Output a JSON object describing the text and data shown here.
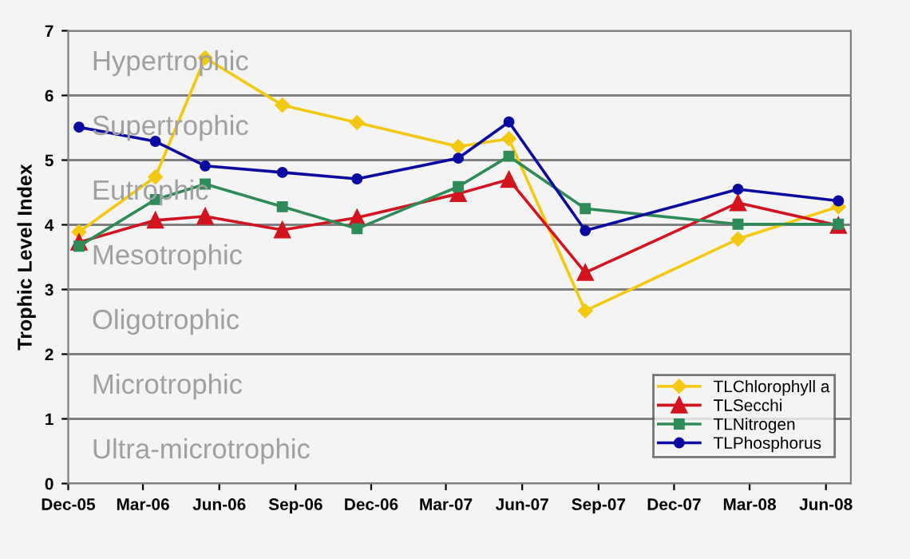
{
  "chart_data": {
    "type": "line",
    "ylabel": "Trophic Level Index",
    "x": [
      "2005-12-14",
      "2006-03-16",
      "2006-05-15",
      "2006-08-16",
      "2006-11-14",
      "2007-03-16",
      "2007-05-16",
      "2007-08-16",
      "2008-02-16",
      "2008-06-16"
    ],
    "series": [
      {
        "name": "TLChlorophyll a",
        "color": "#f2c811",
        "marker": "diamond",
        "values": [
          3.89,
          4.74,
          6.58,
          5.85,
          5.58,
          5.21,
          5.33,
          2.67,
          3.78,
          4.28
        ]
      },
      {
        "name": "TLSecchi",
        "color": "#d2141e",
        "marker": "triangle",
        "values": [
          3.73,
          4.07,
          4.13,
          3.92,
          4.11,
          4.48,
          4.7,
          3.26,
          4.34,
          3.99
        ]
      },
      {
        "name": "TLNitrogen",
        "color": "#2e8b57",
        "marker": "square",
        "values": [
          3.67,
          4.39,
          4.63,
          4.28,
          3.94,
          4.59,
          5.06,
          4.25,
          4.01,
          4.01
        ]
      },
      {
        "name": "TLPhosphorus",
        "color": "#0a0aa0",
        "marker": "circle",
        "values": [
          5.51,
          5.29,
          4.91,
          4.81,
          4.71,
          5.03,
          5.59,
          3.91,
          4.55,
          4.37
        ]
      }
    ],
    "xlim": [
      "2005-12-01",
      "2008-07-01"
    ],
    "xticks": [
      {
        "value": "2005-12-01",
        "label": "Dec-05"
      },
      {
        "value": "2006-03-01",
        "label": "Mar-06"
      },
      {
        "value": "2006-06-01",
        "label": "Jun-06"
      },
      {
        "value": "2006-09-01",
        "label": "Sep-06"
      },
      {
        "value": "2006-12-01",
        "label": "Dec-06"
      },
      {
        "value": "2007-03-01",
        "label": "Mar-07"
      },
      {
        "value": "2007-06-01",
        "label": "Jun-07"
      },
      {
        "value": "2007-09-01",
        "label": "Sep-07"
      },
      {
        "value": "2007-12-01",
        "label": "Dec-07"
      },
      {
        "value": "2008-03-01",
        "label": "Mar-08"
      },
      {
        "value": "2008-06-01",
        "label": "Jun-08"
      }
    ],
    "ylim": [
      0,
      7
    ],
    "yticks": [
      0,
      1,
      2,
      3,
      4,
      5,
      6,
      7
    ],
    "annotations": [
      "Hypertrophic",
      "Supertrophic",
      "Eutrophic",
      "Mesotrophic",
      "Oligotrophic",
      "Microtrophic",
      "Ultra-microtrophic"
    ],
    "grid": "y",
    "legend": "bottom right",
    "line_style": "solid"
  }
}
